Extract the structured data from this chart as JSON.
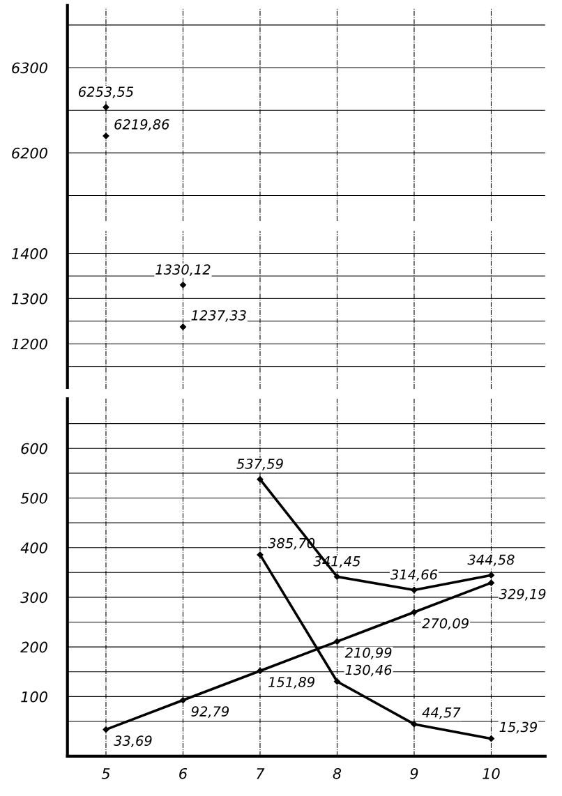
{
  "chart_data": [
    {
      "type": "line",
      "categories": [
        "5",
        "6",
        "7",
        "8",
        "9",
        "10"
      ],
      "ylim": [
        6120,
        6370
      ],
      "yticks": [
        {
          "value": 6150,
          "label": null
        },
        6200,
        {
          "value": 6250,
          "label": null
        },
        6300,
        {
          "value": 6350,
          "label": null
        }
      ],
      "grid": true,
      "tick_labels": "y",
      "marker": "diamond",
      "series": [
        {
          "color": "#000000",
          "values": [
            6219.86,
            null,
            null,
            null,
            null,
            null
          ],
          "value_labels": [
            "6219,86",
            null,
            null,
            null,
            null,
            null
          ]
        },
        {
          "color": "#000000",
          "values": [
            6253.55,
            null,
            null,
            null,
            null,
            null
          ],
          "value_labels": [
            "6253,55",
            null,
            null,
            null,
            null,
            null
          ]
        }
      ]
    },
    {
      "type": "line",
      "categories": [
        "5",
        "6",
        "7",
        "8",
        "9",
        "10"
      ],
      "ylim": [
        1100,
        1450
      ],
      "yticks": [
        {
          "value": 1150,
          "label": null
        },
        1200,
        {
          "value": 1250,
          "label": null
        },
        1300,
        {
          "value": 1350,
          "label": null
        },
        1400
      ],
      "grid": true,
      "tick_labels": "y",
      "marker": "diamond",
      "series": [
        {
          "color": "#000000",
          "values": [
            null,
            1237.33,
            null,
            null,
            null,
            null
          ],
          "value_labels": [
            null,
            "1237,33",
            null,
            null,
            null,
            null
          ]
        },
        {
          "color": "#000000",
          "values": [
            null,
            1330.12,
            null,
            null,
            null,
            null
          ],
          "value_labels": [
            null,
            "1330,12",
            null,
            null,
            null,
            null
          ]
        }
      ]
    },
    {
      "type": "line",
      "categories": [
        "5",
        "6",
        "7",
        "8",
        "9",
        "10"
      ],
      "ylim": [
        -20,
        700
      ],
      "yticks": [
        {
          "value": 50,
          "label": null
        },
        100,
        {
          "value": 150,
          "label": null
        },
        200,
        {
          "value": 250,
          "label": null
        },
        300,
        {
          "value": 350,
          "label": null
        },
        400,
        {
          "value": 450,
          "label": null
        },
        500,
        {
          "value": 550,
          "label": null
        },
        600,
        {
          "value": 650,
          "label": null
        }
      ],
      "grid": true,
      "marker": "diamond",
      "series": [
        {
          "color": "#000000",
          "values": [
            33.69,
            92.79,
            151.89,
            210.99,
            270.09,
            329.19
          ],
          "value_labels": [
            "33,69",
            "92,79",
            "151,89",
            "210,99",
            "270,09",
            "329,19"
          ]
        },
        {
          "color": "#000000",
          "values": [
            null,
            null,
            385.7,
            130.46,
            44.57,
            15.39
          ],
          "value_labels": [
            null,
            null,
            "385,70",
            "130,46",
            "44,57",
            "15,39"
          ]
        },
        {
          "color": "#000000",
          "values": [
            null,
            null,
            537.59,
            341.45,
            314.66,
            344.58
          ],
          "value_labels": [
            null,
            null,
            "537,59",
            "341,45",
            "314,66",
            "344,58"
          ]
        }
      ]
    }
  ]
}
